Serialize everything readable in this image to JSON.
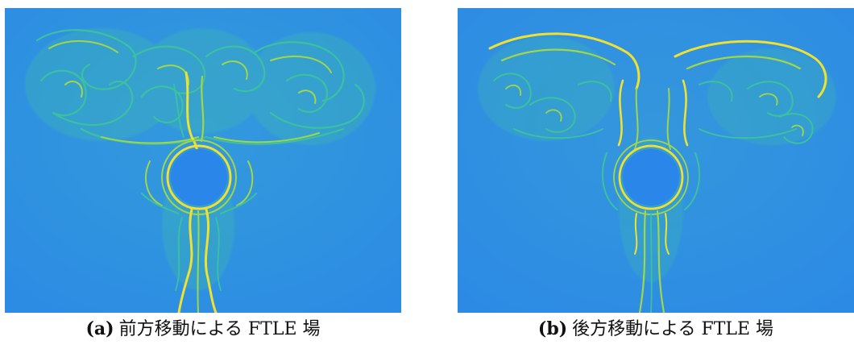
{
  "figure": {
    "panels": [
      {
        "label": "(a)",
        "caption": "前方移動による FTLE 場"
      },
      {
        "label": "(b)",
        "caption": "後方移動による FTLE 場"
      }
    ],
    "colors": {
      "background_field": "#2f8de3",
      "obstacle": "#2b86ea",
      "ridge_low": "#3ec0a0",
      "ridge_mid": "#9fd64a",
      "ridge_high": "#f0e030"
    }
  }
}
